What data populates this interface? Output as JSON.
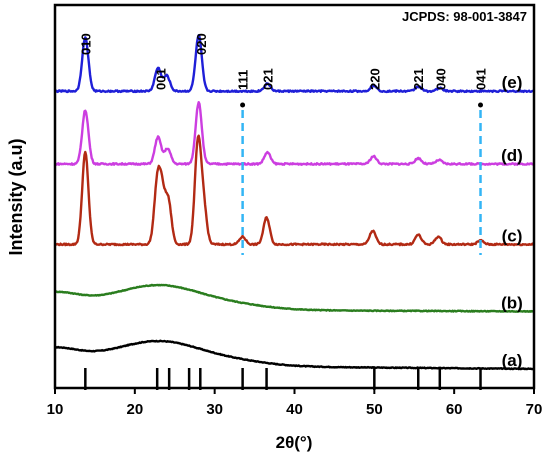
{
  "chart_data": {
    "type": "line",
    "annotation": "JCPDS: 98-001-3847",
    "xlabel": "2θ(°)",
    "ylabel": "Intensity (a.u)",
    "xlim": [
      10,
      70
    ],
    "xticks": [
      "10",
      "20",
      "30",
      "40",
      "50",
      "60",
      "70"
    ],
    "reference_peaks": [
      13.8,
      22.8,
      24.3,
      26.8,
      28.2,
      33.5,
      36.5,
      50,
      55.5,
      58.2,
      63.3
    ],
    "peak_labels": [
      {
        "text": "010",
        "x": 13.8
      },
      {
        "text": "001",
        "x": 23.2
      },
      {
        "text": "020",
        "x": 28.3
      },
      {
        "text": "111",
        "x": 33.5
      },
      {
        "text": "021",
        "x": 36.6
      },
      {
        "text": "220",
        "x": 50.0
      },
      {
        "text": "221",
        "x": 55.5
      },
      {
        "text": "040",
        "x": 58.3
      },
      {
        "text": "041",
        "x": 63.3
      }
    ],
    "dashed_markers": [
      33.5,
      63.3
    ],
    "series": [
      {
        "name": "(a)",
        "color": "#000000",
        "kind": "amorphous",
        "baseline": 0.05,
        "hump_height": 0.045,
        "hump_center": 23,
        "decay_end": 0.01
      },
      {
        "name": "(b)",
        "color": "#2a7d1e",
        "kind": "amorphous",
        "baseline": 0.2,
        "hump_height": 0.045,
        "hump_center": 23,
        "decay_end": 0.005
      },
      {
        "name": "(c)",
        "color": "#b22a14",
        "kind": "crystalline",
        "baseline": 0.375,
        "peaks": [
          [
            13.8,
            0.24
          ],
          [
            22.8,
            0.15
          ],
          [
            23.4,
            0.12
          ],
          [
            24.2,
            0.11
          ],
          [
            27.9,
            0.26
          ],
          [
            28.6,
            0.1
          ],
          [
            33.5,
            0.02
          ],
          [
            36.5,
            0.07
          ],
          [
            49.8,
            0.035
          ],
          [
            55.5,
            0.025
          ],
          [
            58.0,
            0.02
          ],
          [
            63.3,
            0.01
          ]
        ]
      },
      {
        "name": "(d)",
        "color": "#cc3ee0",
        "kind": "crystalline",
        "baseline": 0.585,
        "peaks": [
          [
            13.8,
            0.14
          ],
          [
            22.9,
            0.07
          ],
          [
            24.1,
            0.04
          ],
          [
            28.0,
            0.16
          ],
          [
            36.6,
            0.03
          ],
          [
            49.9,
            0.02
          ],
          [
            55.5,
            0.015
          ],
          [
            58.1,
            0.01
          ]
        ]
      },
      {
        "name": "(e)",
        "color": "#1f1fd8",
        "kind": "crystalline",
        "baseline": 0.775,
        "peaks": [
          [
            13.8,
            0.14
          ],
          [
            22.9,
            0.06
          ],
          [
            24.0,
            0.04
          ],
          [
            28.0,
            0.145
          ],
          [
            36.6,
            0.02
          ],
          [
            49.9,
            0.015
          ],
          [
            55.5,
            0.012
          ],
          [
            58.2,
            0.008
          ]
        ]
      }
    ]
  }
}
